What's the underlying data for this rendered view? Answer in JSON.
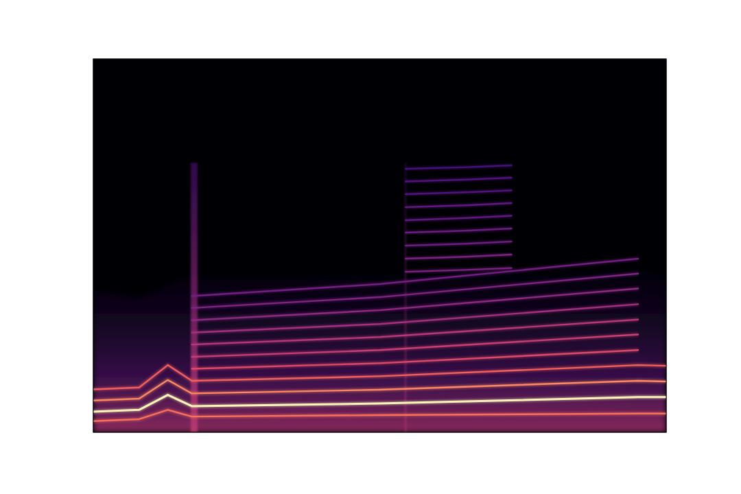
{
  "chart_data": {
    "type": "spectrogram",
    "xlim": [
      0,
      1
    ],
    "ylim": [
      0,
      1
    ],
    "tick_labels": false,
    "grid": false,
    "noise_floor": {
      "x": [
        0,
        0.08,
        0.17,
        0.5,
        0.95,
        1
      ],
      "values": [
        0.38,
        0.36,
        0.42,
        0.42,
        0.43,
        0.42
      ]
    },
    "transients": {
      "x": [
        0.176,
        0.545
      ],
      "values": [
        0.722,
        0.722
      ]
    },
    "series": [
      {
        "color": "#f7705c",
        "x": [
          0,
          0.08,
          0.13,
          0.172,
          0.5,
          0.951,
          1
        ],
        "values": [
          0.03,
          0.035,
          0.06,
          0.042,
          0.046,
          0.05,
          0.05
        ]
      },
      {
        "color": "#fcf5b8",
        "x": [
          0,
          0.08,
          0.13,
          0.172,
          0.5,
          0.951,
          1
        ],
        "values": [
          0.055,
          0.06,
          0.1,
          0.07,
          0.077,
          0.094,
          0.094
        ]
      },
      {
        "color": "#fb8861",
        "x": [
          0,
          0.08,
          0.13,
          0.172,
          0.5,
          0.951,
          1
        ],
        "values": [
          0.085,
          0.09,
          0.14,
          0.104,
          0.114,
          0.138,
          0.136
        ]
      },
      {
        "color": "#f1605d",
        "x": [
          0,
          0.08,
          0.13,
          0.172,
          0.5,
          0.951,
          1
        ],
        "values": [
          0.115,
          0.12,
          0.18,
          0.138,
          0.15,
          0.18,
          0.178
        ]
      },
      {
        "color": "#de4968",
        "x": [
          0.172,
          0.5,
          0.951
        ],
        "values": [
          0.17,
          0.185,
          0.22
        ]
      },
      {
        "color": "#c83e73",
        "x": [
          0.172,
          0.5,
          0.951
        ],
        "values": [
          0.202,
          0.22,
          0.262
        ]
      },
      {
        "color": "#b73779",
        "x": [
          0.172,
          0.5,
          0.951
        ],
        "values": [
          0.235,
          0.255,
          0.302
        ]
      },
      {
        "color": "#a3307e",
        "x": [
          0.172,
          0.5,
          0.951
        ],
        "values": [
          0.267,
          0.29,
          0.343
        ]
      },
      {
        "color": "#8c2981",
        "x": [
          0.172,
          0.5,
          0.951
        ],
        "values": [
          0.3,
          0.327,
          0.385
        ]
      },
      {
        "color": "#7e2482",
        "x": [
          0.172,
          0.5,
          0.951
        ],
        "values": [
          0.333,
          0.362,
          0.425
        ]
      },
      {
        "color": "#721f81",
        "x": [
          0.172,
          0.5,
          0.951
        ],
        "values": [
          0.365,
          0.397,
          0.465
        ]
      },
      {
        "color": "#7a2282",
        "x": [
          0.545,
          0.65,
          0.73
        ],
        "values": [
          0.43,
          0.435,
          0.44
        ]
      },
      {
        "color": "#7a2282",
        "x": [
          0.545,
          0.65,
          0.73
        ],
        "values": [
          0.465,
          0.47,
          0.476
        ]
      },
      {
        "color": "#6a1c81",
        "x": [
          0.545,
          0.65,
          0.73
        ],
        "values": [
          0.5,
          0.505,
          0.511
        ]
      },
      {
        "color": "#6a1c81",
        "x": [
          0.545,
          0.65,
          0.73
        ],
        "values": [
          0.535,
          0.54,
          0.546
        ]
      },
      {
        "color": "#5f187f",
        "x": [
          0.545,
          0.65,
          0.73
        ],
        "values": [
          0.568,
          0.574,
          0.58
        ]
      },
      {
        "color": "#5f187f",
        "x": [
          0.545,
          0.65,
          0.73
        ],
        "values": [
          0.603,
          0.608,
          0.614
        ]
      },
      {
        "color": "#51127c",
        "x": [
          0.545,
          0.65,
          0.73
        ],
        "values": [
          0.638,
          0.643,
          0.648
        ]
      },
      {
        "color": "#51127c",
        "x": [
          0.545,
          0.65,
          0.73
        ],
        "values": [
          0.672,
          0.677,
          0.682
        ]
      },
      {
        "color": "#451077",
        "x": [
          0.545,
          0.65,
          0.73
        ],
        "values": [
          0.706,
          0.71,
          0.715
        ]
      }
    ]
  }
}
